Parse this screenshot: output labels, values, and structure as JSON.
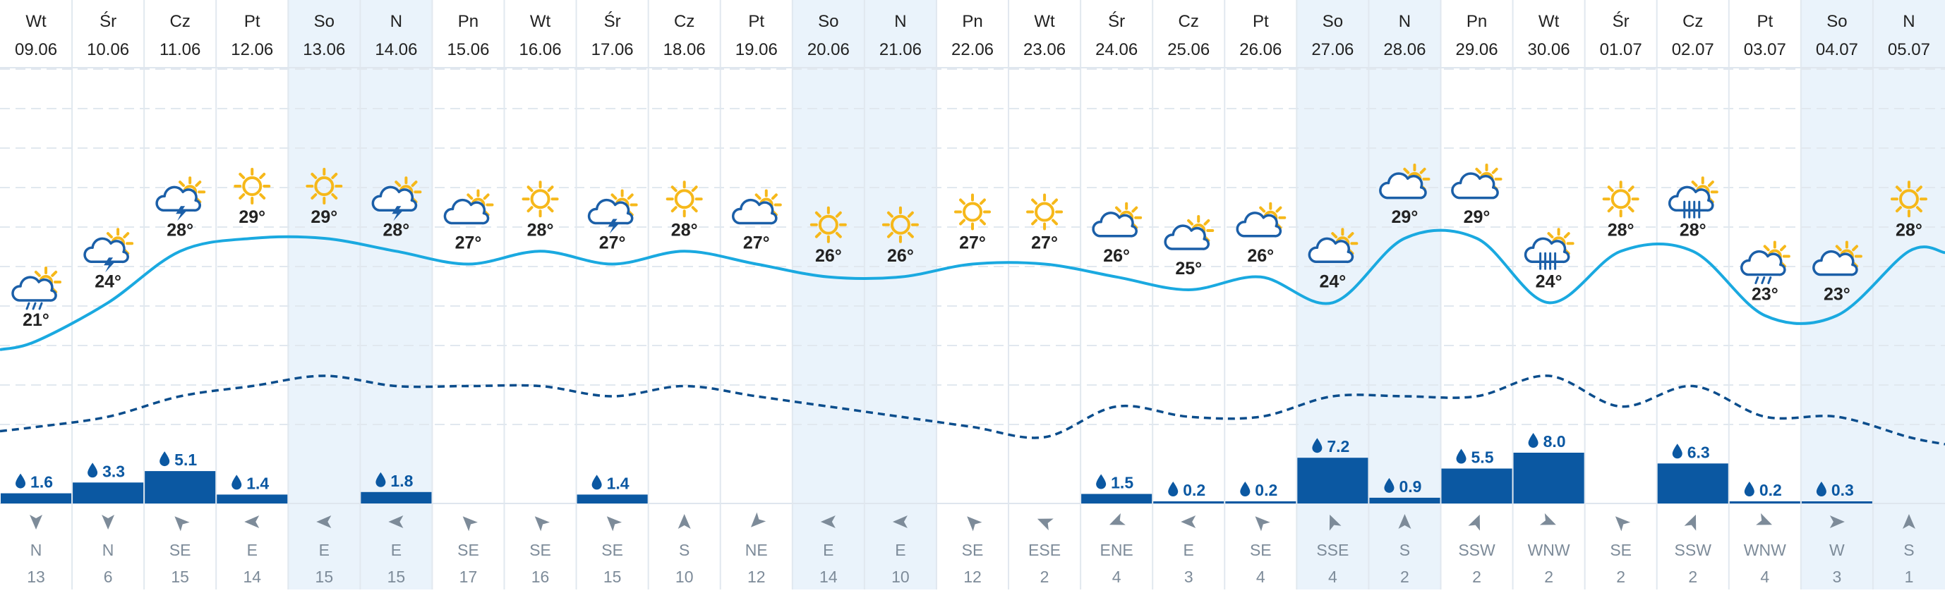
{
  "chart_data": {
    "type": "line",
    "title": "",
    "days": [
      {
        "dow": "Wt",
        "date": "09.06",
        "temp": 21,
        "icon": "cloud-sun-rain-icon",
        "precip": 1.6,
        "wind_dir": "N",
        "wind_speed": 13,
        "weekend": false
      },
      {
        "dow": "Śr",
        "date": "10.06",
        "temp": 24,
        "icon": "cloud-sun-storm-icon",
        "precip": 3.3,
        "wind_dir": "N",
        "wind_speed": 6,
        "weekend": false
      },
      {
        "dow": "Cz",
        "date": "11.06",
        "temp": 28,
        "icon": "cloud-sun-storm-icon",
        "precip": 5.1,
        "wind_dir": "SE",
        "wind_speed": 15,
        "weekend": false
      },
      {
        "dow": "Pt",
        "date": "12.06",
        "temp": 29,
        "icon": "sun-icon",
        "precip": 1.4,
        "wind_dir": "E",
        "wind_speed": 14,
        "weekend": false
      },
      {
        "dow": "So",
        "date": "13.06",
        "temp": 29,
        "icon": "sun-icon",
        "precip": null,
        "wind_dir": "E",
        "wind_speed": 15,
        "weekend": true
      },
      {
        "dow": "N",
        "date": "14.06",
        "temp": 28,
        "icon": "cloud-sun-storm-icon",
        "precip": 1.8,
        "wind_dir": "E",
        "wind_speed": 15,
        "weekend": true
      },
      {
        "dow": "Pn",
        "date": "15.06",
        "temp": 27,
        "icon": "cloud-sun-icon",
        "precip": null,
        "wind_dir": "SE",
        "wind_speed": 17,
        "weekend": false
      },
      {
        "dow": "Wt",
        "date": "16.06",
        "temp": 28,
        "icon": "sun-icon",
        "precip": null,
        "wind_dir": "SE",
        "wind_speed": 16,
        "weekend": false
      },
      {
        "dow": "Śr",
        "date": "17.06",
        "temp": 27,
        "icon": "cloud-sun-storm-icon",
        "precip": 1.4,
        "wind_dir": "SE",
        "wind_speed": 15,
        "weekend": false
      },
      {
        "dow": "Cz",
        "date": "18.06",
        "temp": 28,
        "icon": "sun-icon",
        "precip": null,
        "wind_dir": "S",
        "wind_speed": 10,
        "weekend": false
      },
      {
        "dow": "Pt",
        "date": "19.06",
        "temp": 27,
        "icon": "cloud-sun-icon",
        "precip": null,
        "wind_dir": "NE",
        "wind_speed": 12,
        "weekend": false
      },
      {
        "dow": "So",
        "date": "20.06",
        "temp": 26,
        "icon": "sun-icon",
        "precip": null,
        "wind_dir": "E",
        "wind_speed": 14,
        "weekend": true
      },
      {
        "dow": "N",
        "date": "21.06",
        "temp": 26,
        "icon": "sun-icon",
        "precip": null,
        "wind_dir": "E",
        "wind_speed": 10,
        "weekend": true
      },
      {
        "dow": "Pn",
        "date": "22.06",
        "temp": 27,
        "icon": "sun-icon",
        "precip": null,
        "wind_dir": "SE",
        "wind_speed": 12,
        "weekend": false
      },
      {
        "dow": "Wt",
        "date": "23.06",
        "temp": 27,
        "icon": "sun-icon",
        "precip": null,
        "wind_dir": "ESE",
        "wind_speed": 2,
        "weekend": false
      },
      {
        "dow": "Śr",
        "date": "24.06",
        "temp": 26,
        "icon": "cloud-sun-icon",
        "precip": 1.5,
        "wind_dir": "ENE",
        "wind_speed": 4,
        "weekend": false
      },
      {
        "dow": "Cz",
        "date": "25.06",
        "temp": 25,
        "icon": "cloud-sun-icon",
        "precip": 0.2,
        "wind_dir": "E",
        "wind_speed": 3,
        "weekend": false
      },
      {
        "dow": "Pt",
        "date": "26.06",
        "temp": 26,
        "icon": "cloud-sun-icon",
        "precip": 0.2,
        "wind_dir": "SE",
        "wind_speed": 4,
        "weekend": false
      },
      {
        "dow": "So",
        "date": "27.06",
        "temp": 24,
        "icon": "cloud-sun-icon",
        "precip": 7.2,
        "wind_dir": "SSE",
        "wind_speed": 4,
        "weekend": true
      },
      {
        "dow": "N",
        "date": "28.06",
        "temp": 29,
        "icon": "cloud-sun-icon",
        "precip": 0.9,
        "wind_dir": "S",
        "wind_speed": 2,
        "weekend": true
      },
      {
        "dow": "Pn",
        "date": "29.06",
        "temp": 29,
        "icon": "cloud-sun-icon",
        "precip": 5.5,
        "wind_dir": "SSW",
        "wind_speed": 2,
        "weekend": false
      },
      {
        "dow": "Wt",
        "date": "30.06",
        "temp": 24,
        "icon": "cloud-sun-heavy-rain-icon",
        "precip": 8.0,
        "wind_dir": "WNW",
        "wind_speed": 2,
        "weekend": false
      },
      {
        "dow": "Śr",
        "date": "01.07",
        "temp": 28,
        "icon": "sun-icon",
        "precip": null,
        "wind_dir": "SE",
        "wind_speed": 2,
        "weekend": false
      },
      {
        "dow": "Cz",
        "date": "02.07",
        "temp": 28,
        "icon": "cloud-heavy-rain-icon",
        "precip": 6.3,
        "wind_dir": "SSW",
        "wind_speed": 2,
        "weekend": false
      },
      {
        "dow": "Pt",
        "date": "03.07",
        "temp": 23,
        "icon": "cloud-sun-rain-icon",
        "precip": 0.2,
        "wind_dir": "WNW",
        "wind_speed": 4,
        "weekend": false
      },
      {
        "dow": "So",
        "date": "04.07",
        "temp": 23,
        "icon": "cloud-sun-icon",
        "precip": 0.3,
        "wind_dir": "W",
        "wind_speed": 3,
        "weekend": true
      },
      {
        "dow": "N",
        "date": "05.07",
        "temp": 28,
        "icon": "sun-icon",
        "precip": null,
        "wind_dir": "S",
        "wind_speed": 1,
        "weekend": true
      }
    ],
    "series": [
      {
        "values": [
          21,
          24,
          28,
          29,
          29,
          28,
          27,
          28,
          27,
          28,
          27,
          26,
          26,
          27,
          27,
          26,
          25,
          26,
          24,
          29,
          29,
          24,
          28,
          28,
          23,
          23,
          28
        ]
      },
      {
        "values": [
          14,
          15,
          17,
          18,
          19,
          18,
          18,
          18,
          17,
          18,
          17,
          16,
          15,
          14,
          13,
          16,
          15,
          15,
          17,
          17,
          17,
          19,
          16,
          18,
          15,
          15,
          13
        ]
      }
    ],
    "precip_max": 8.0,
    "colors": {
      "temp_line": "#1aa9e0",
      "dotted_line": "#0b4d8c",
      "precip_bar": "#0b58a2",
      "label_blue": "#0b58a2",
      "weekend_bg": "#eaf3fb",
      "gridline": "#e1e8ef",
      "sun": "#f6b81a",
      "cloud": "#1b5fa8",
      "wind_gray": "#7d8b99",
      "text": "#222222"
    }
  }
}
